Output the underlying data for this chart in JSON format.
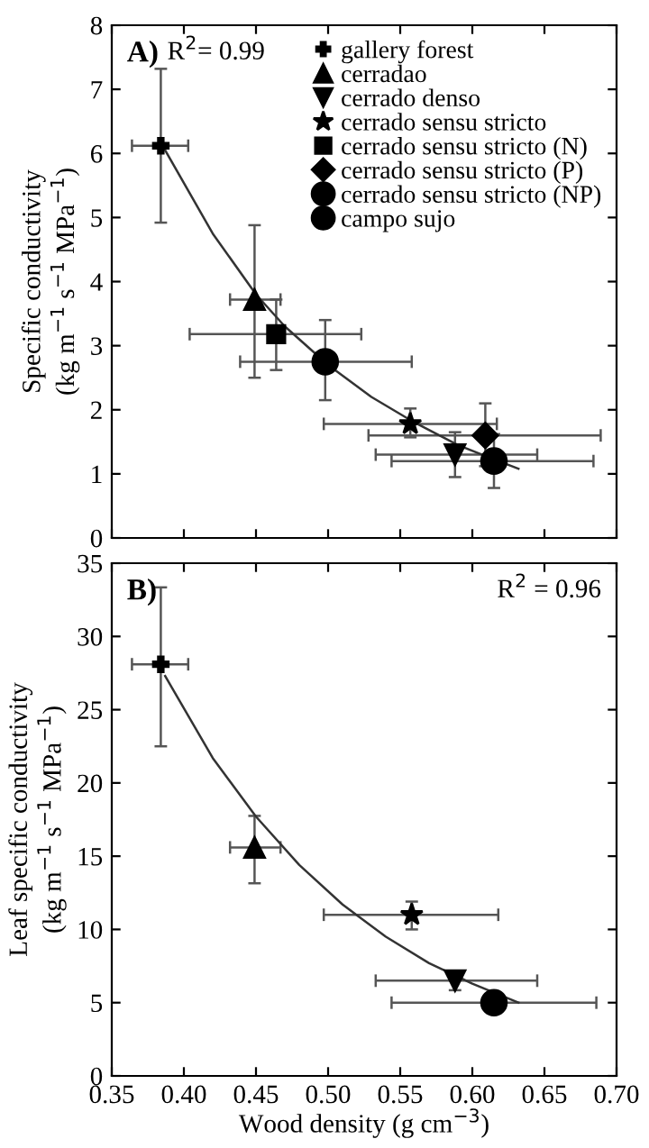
{
  "chart_data": [
    {
      "type": "scatter",
      "ylabel": "Specific conductivity\n(kg m$^{−1}$ s$^{−1}$ MPa$^{−1}$)",
      "annotations": [
        "A)",
        "R$^{2}$= 0.99"
      ],
      "xlim": [
        0.35,
        0.7
      ],
      "ylim": [
        0,
        8
      ],
      "yticks": [
        0,
        1,
        2,
        3,
        4,
        5,
        6,
        7,
        8
      ],
      "xticks": [
        {
          "value": 0.35,
          "label": null
        },
        {
          "value": 0.4,
          "label": null
        },
        {
          "value": 0.45,
          "label": null
        },
        {
          "value": 0.5,
          "label": null
        },
        {
          "value": 0.55,
          "label": null
        },
        {
          "value": 0.6,
          "label": null
        },
        {
          "value": 0.65,
          "label": null
        },
        {
          "value": 0.7,
          "label": null
        }
      ],
      "tick_labels": "y",
      "grid": false,
      "legend": "top right",
      "series": [
        {
          "name": "gallery forest",
          "color": "#000000",
          "marker": "cross",
          "x": [
            0.384
          ],
          "values": [
            6.12
          ],
          "errors": [
            [
              4.92,
              7.32
            ]
          ],
          "xerrors": [
            [
              0.364,
              0.403
            ]
          ]
        },
        {
          "name": "cerradao",
          "color": "#000000",
          "marker": "triangle",
          "x": [
            0.449
          ],
          "values": [
            3.72
          ],
          "errors": [
            [
              2.5,
              4.88
            ]
          ],
          "xerrors": [
            [
              0.432,
              0.467
            ]
          ]
        },
        {
          "name": "cerrado denso",
          "color": "#000000",
          "marker": "triangle_down",
          "x": [
            0.588
          ],
          "values": [
            1.3
          ],
          "errors": [
            [
              0.95,
              1.65
            ]
          ],
          "xerrors": [
            [
              0.533,
              0.645
            ]
          ]
        },
        {
          "name": "cerrado sensu stricto",
          "color": "#000000",
          "marker": "star",
          "x": [
            0.557
          ],
          "values": [
            1.78
          ],
          "errors": [
            [
              1.57,
              2.02
            ]
          ],
          "xerrors": [
            [
              0.497,
              0.617
            ]
          ]
        },
        {
          "name": "cerrado sensu stricto (N)",
          "color": "#000000",
          "marker": "square",
          "x": [
            0.464
          ],
          "values": [
            3.18
          ],
          "errors": [
            [
              2.62,
              3.72
            ]
          ],
          "xerrors": [
            [
              0.404,
              0.523
            ]
          ]
        },
        {
          "name": "cerrado sensu stricto (P)",
          "color": "#000000",
          "marker": "diamond",
          "x": [
            0.609
          ],
          "values": [
            1.6
          ],
          "errors": [
            [
              1.12,
              2.1
            ]
          ],
          "xerrors": [
            [
              0.528,
              0.689
            ]
          ]
        },
        {
          "name": "cerrado sensu stricto (NP)",
          "color": "#000000",
          "marker": "circle",
          "x": [
            0.498
          ],
          "values": [
            2.75
          ],
          "errors": [
            [
              2.15,
              3.4
            ]
          ],
          "xerrors": [
            [
              0.439,
              0.558
            ]
          ]
        },
        {
          "name": "campo sujo",
          "color": "#000000",
          "marker": "circle",
          "x": [
            0.615
          ],
          "values": [
            1.2
          ],
          "errors": [
            [
              0.78,
              1.62
            ]
          ],
          "xerrors": [
            [
              0.544,
              0.684
            ]
          ]
        },
        {
          "type": "line",
          "color": "#333333",
          "x": [
            0.387,
            0.42,
            0.45,
            0.47,
            0.5,
            0.53,
            0.56,
            0.59,
            0.61,
            0.632
          ],
          "values": [
            6.05,
            4.75,
            3.8,
            3.3,
            2.7,
            2.2,
            1.8,
            1.45,
            1.27,
            1.08
          ]
        }
      ]
    },
    {
      "type": "scatter",
      "xlabel": "Wood density (g cm$^{−3}$)",
      "ylabel": "Leaf specific conductivity\n(kg m$^{−1}$ s$^{−1}$ MPa$^{−1}$)",
      "annotations": [
        "B)",
        "R$^{2}$ = 0.96"
      ],
      "xlim": [
        0.35,
        0.7
      ],
      "ylim": [
        0,
        35
      ],
      "yticks": [
        0,
        5,
        10,
        15,
        20,
        25,
        30,
        35
      ],
      "xticks": [
        {
          "value": 0.35,
          "label": "0.35"
        },
        {
          "value": 0.4,
          "label": "0.40"
        },
        {
          "value": 0.45,
          "label": "0.45"
        },
        {
          "value": 0.5,
          "label": "0.50"
        },
        {
          "value": 0.55,
          "label": "0.55"
        },
        {
          "value": 0.6,
          "label": "0.60"
        },
        {
          "value": 0.65,
          "label": "0.65"
        },
        {
          "value": 0.7,
          "label": "0.70"
        }
      ],
      "grid": false,
      "series": [
        {
          "color": "#000000",
          "marker": "cross",
          "x": [
            0.384
          ],
          "values": [
            28.1
          ],
          "errors": [
            [
              22.5,
              33.35
            ]
          ],
          "xerrors": [
            [
              0.364,
              0.403
            ]
          ]
        },
        {
          "color": "#000000",
          "marker": "triangle",
          "x": [
            0.449
          ],
          "values": [
            15.6
          ],
          "errors": [
            [
              13.15,
              17.75
            ]
          ],
          "xerrors": [
            [
              0.432,
              0.467
            ]
          ]
        },
        {
          "color": "#000000",
          "marker": "star",
          "x": [
            0.558
          ],
          "values": [
            11.0
          ],
          "errors": [
            [
              10.0,
              11.9
            ]
          ],
          "xerrors": [
            [
              0.497,
              0.618
            ]
          ]
        },
        {
          "color": "#000000",
          "marker": "triangle_down",
          "x": [
            0.588
          ],
          "values": [
            6.5
          ],
          "errors": [
            [
              5.85,
              7.1
            ]
          ],
          "xerrors": [
            [
              0.533,
              0.645
            ]
          ]
        },
        {
          "color": "#000000",
          "marker": "circle",
          "x": [
            0.615
          ],
          "values": [
            5.0
          ],
          "errors": [
            null
          ],
          "xerrors": [
            [
              0.544,
              0.686
            ]
          ]
        },
        {
          "type": "line",
          "color": "#333333",
          "x": [
            0.387,
            0.42,
            0.45,
            0.48,
            0.51,
            0.54,
            0.57,
            0.6,
            0.632
          ],
          "values": [
            27.3,
            21.7,
            17.7,
            14.4,
            11.7,
            9.5,
            7.7,
            6.3,
            5.0
          ]
        }
      ]
    }
  ]
}
